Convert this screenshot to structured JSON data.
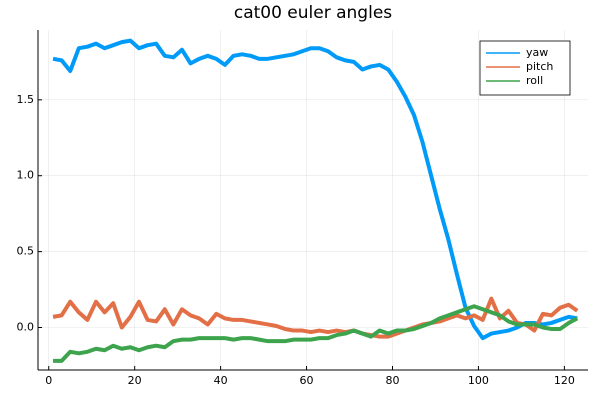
{
  "chart_data": {
    "type": "line",
    "title": "cat00 euler angles",
    "x": [
      1,
      3,
      5,
      7,
      9,
      11,
      13,
      15,
      17,
      19,
      21,
      23,
      25,
      27,
      29,
      31,
      33,
      35,
      37,
      39,
      41,
      43,
      45,
      47,
      49,
      51,
      53,
      55,
      57,
      59,
      61,
      63,
      65,
      67,
      69,
      71,
      73,
      75,
      77,
      79,
      81,
      83,
      85,
      87,
      89,
      91,
      93,
      95,
      97,
      99,
      101,
      103,
      105,
      107,
      109,
      111,
      113,
      115,
      117,
      119,
      121,
      123
    ],
    "series": [
      {
        "name": "yaw",
        "color": "#009af9",
        "values": [
          1.77,
          1.76,
          1.69,
          1.84,
          1.85,
          1.87,
          1.84,
          1.86,
          1.88,
          1.89,
          1.84,
          1.86,
          1.87,
          1.79,
          1.78,
          1.83,
          1.74,
          1.77,
          1.79,
          1.77,
          1.73,
          1.79,
          1.8,
          1.79,
          1.77,
          1.77,
          1.78,
          1.79,
          1.8,
          1.82,
          1.84,
          1.84,
          1.82,
          1.78,
          1.76,
          1.75,
          1.7,
          1.72,
          1.73,
          1.7,
          1.62,
          1.52,
          1.4,
          1.22,
          1.0,
          0.78,
          0.58,
          0.35,
          0.13,
          0.01,
          -0.07,
          -0.04,
          -0.03,
          -0.02,
          0.0,
          0.03,
          0.03,
          0.02,
          0.03,
          0.05,
          0.07,
          0.06
        ]
      },
      {
        "name": "pitch",
        "color": "#e26f46",
        "values": [
          0.07,
          0.08,
          0.17,
          0.1,
          0.05,
          0.17,
          0.1,
          0.16,
          0.0,
          0.07,
          0.17,
          0.05,
          0.04,
          0.12,
          0.02,
          0.12,
          0.08,
          0.06,
          0.02,
          0.09,
          0.06,
          0.05,
          0.05,
          0.04,
          0.03,
          0.02,
          0.01,
          -0.01,
          -0.02,
          -0.02,
          -0.03,
          -0.02,
          -0.03,
          -0.02,
          -0.03,
          -0.02,
          -0.04,
          -0.05,
          -0.06,
          -0.06,
          -0.04,
          -0.02,
          0.0,
          0.02,
          0.03,
          0.04,
          0.06,
          0.08,
          0.06,
          0.08,
          0.05,
          0.19,
          0.06,
          0.11,
          0.03,
          0.02,
          -0.02,
          0.09,
          0.08,
          0.13,
          0.15,
          0.11
        ]
      },
      {
        "name": "roll",
        "color": "#3da44d",
        "values": [
          -0.22,
          -0.22,
          -0.16,
          -0.17,
          -0.16,
          -0.14,
          -0.15,
          -0.12,
          -0.14,
          -0.13,
          -0.15,
          -0.13,
          -0.12,
          -0.13,
          -0.09,
          -0.08,
          -0.08,
          -0.07,
          -0.07,
          -0.07,
          -0.07,
          -0.08,
          -0.07,
          -0.07,
          -0.08,
          -0.09,
          -0.09,
          -0.09,
          -0.08,
          -0.08,
          -0.08,
          -0.07,
          -0.07,
          -0.05,
          -0.04,
          -0.02,
          -0.04,
          -0.06,
          -0.02,
          -0.04,
          -0.02,
          -0.02,
          -0.01,
          0.01,
          0.03,
          0.06,
          0.08,
          0.1,
          0.12,
          0.14,
          0.12,
          0.1,
          0.08,
          0.04,
          0.02,
          0.02,
          0.02,
          0.0,
          -0.01,
          -0.01,
          0.03,
          0.06
        ]
      }
    ],
    "xlim": [
      -2.5,
      125.5
    ],
    "xticks": [
      0,
      20,
      40,
      60,
      80,
      100,
      120
    ],
    "ylim": [
      -0.28,
      1.96
    ],
    "yticks": [
      {
        "value": 0,
        "label": "0.0"
      },
      0.5,
      {
        "value": 1,
        "label": "1.0"
      },
      1.5
    ],
    "grid": true,
    "legend": "top-right"
  }
}
